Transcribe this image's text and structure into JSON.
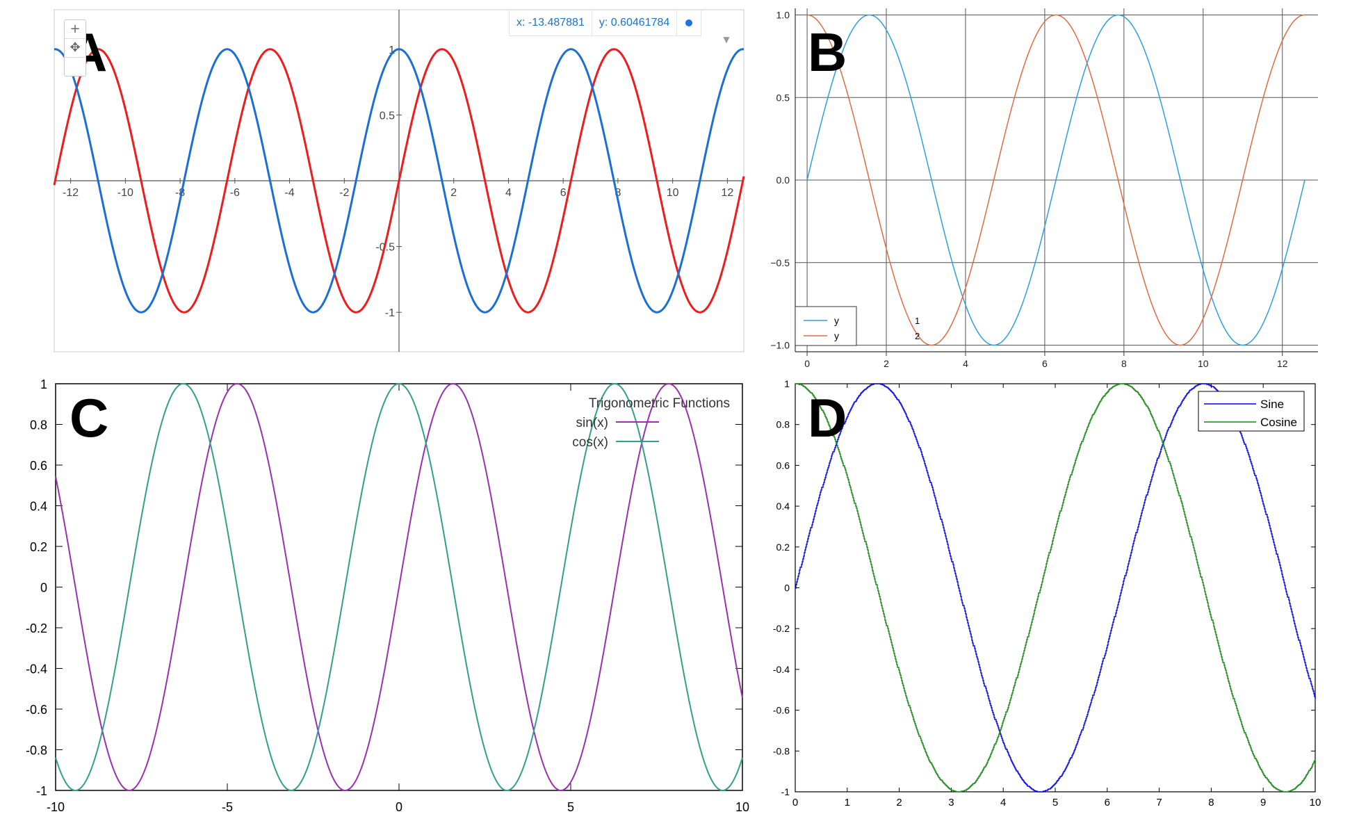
{
  "panels": {
    "A": {
      "letter": "A"
    },
    "B": {
      "letter": "B"
    },
    "C": {
      "letter": "C"
    },
    "D": {
      "letter": "D"
    }
  },
  "readout": {
    "x_text": "x: -13.487881",
    "y_text": "y: 0.60461784"
  },
  "zoom_controls": {
    "zoom_in": "+",
    "pan": "✥"
  },
  "colors": {
    "A_sin": "#ee1c1c",
    "A_cos": "#1a6fd6",
    "B_y1": "#2aa0dd",
    "B_y2": "#e06b43",
    "C_sin": "#9a2fb0",
    "C_cos": "#2fa08a",
    "D_sine": "#0000ee",
    "D_cosine": "#118811"
  },
  "chart_data": [
    {
      "panel": "A",
      "type": "line",
      "title": "",
      "xlabel": "",
      "ylabel": "",
      "xlim": [
        -12.6,
        12.6
      ],
      "ylim": [
        -1.3,
        1.3
      ],
      "x_ticks": [
        "-12",
        "-10",
        "-8",
        "-6",
        "-4",
        "-2",
        "2",
        "4",
        "6",
        "8",
        "10",
        "12"
      ],
      "y_ticks": [
        "1",
        "0.5",
        "-0.5",
        "-1"
      ],
      "series": [
        {
          "function": "sin(x)",
          "x_range": [
            -12.6,
            12.6
          ]
        },
        {
          "function": "cos(x)",
          "x_range": [
            -12.6,
            12.6
          ]
        }
      ],
      "grid": false,
      "legend": "none"
    },
    {
      "panel": "B",
      "type": "line",
      "title": "",
      "xlabel": "",
      "ylabel": "",
      "xlim": [
        -0.3,
        12.9
      ],
      "ylim": [
        -1.04,
        1.04
      ],
      "x_ticks": [
        "0",
        "2",
        "4",
        "6",
        "8",
        "10",
        "12"
      ],
      "y_ticks": [
        "1.0",
        "0.5",
        "0.0",
        "−0.5",
        "−1.0"
      ],
      "series": [
        {
          "name": "y",
          "function": "sin(x)",
          "x_range": [
            0,
            12.566
          ]
        },
        {
          "name": "y",
          "function": "cos(x)",
          "x_range": [
            0,
            12.566
          ]
        }
      ],
      "legend_index_labels": [
        "1",
        "2"
      ],
      "grid": true,
      "legend": "bottom-left"
    },
    {
      "panel": "C",
      "type": "line",
      "title": "",
      "xlabel": "",
      "ylabel": "",
      "legend_title": "Trigonometric Functions",
      "xlim": [
        -10,
        10
      ],
      "ylim": [
        -1,
        1
      ],
      "x_ticks": [
        "-10",
        "-5",
        "0",
        "5",
        "10"
      ],
      "y_ticks": [
        "1",
        "0.8",
        "0.6",
        "0.4",
        "0.2",
        "0",
        "-0.2",
        "-0.4",
        "-0.6",
        "-0.8",
        "-1"
      ],
      "series": [
        {
          "name": "sin(x)",
          "function": "sin(x)",
          "x_range": [
            -10,
            10
          ]
        },
        {
          "name": "cos(x)",
          "function": "cos(x)",
          "x_range": [
            -10,
            10
          ]
        }
      ],
      "grid": false,
      "legend": "top-right"
    },
    {
      "panel": "D",
      "type": "line",
      "title": "",
      "xlabel": "",
      "ylabel": "",
      "xlim": [
        0,
        10
      ],
      "ylim": [
        -1,
        1
      ],
      "x_ticks": [
        "0",
        "1",
        "2",
        "3",
        "4",
        "5",
        "6",
        "7",
        "8",
        "9",
        "10"
      ],
      "y_ticks": [
        "1",
        "0.8",
        "0.6",
        "0.4",
        "0.2",
        "0",
        "-0.2",
        "-0.4",
        "-0.6",
        "-0.8",
        "-1"
      ],
      "series": [
        {
          "name": "Sine",
          "function": "sin(x)",
          "x_range": [
            0,
            10
          ]
        },
        {
          "name": "Cosine",
          "function": "cos(x)",
          "x_range": [
            0,
            10
          ]
        }
      ],
      "grid": false,
      "legend": "top-right"
    }
  ]
}
